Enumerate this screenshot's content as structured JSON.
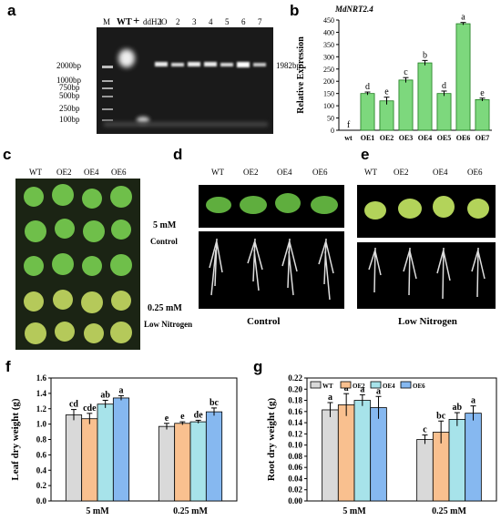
{
  "panels": {
    "a": {
      "letter": "a",
      "lanes": [
        "M",
        "WT",
        "+",
        "ddH2O",
        "1",
        "2",
        "3",
        "4",
        "5",
        "6",
        "7"
      ],
      "ladder": [
        "2000bp",
        "1000bp",
        "750bp",
        "500bp",
        "250bp",
        "100bp"
      ],
      "band_label": "1982bp"
    },
    "b": {
      "letter": "b"
    },
    "c": {
      "letter": "c",
      "genotypes": [
        "WT",
        "OE2",
        "OE4",
        "OE6"
      ],
      "treatments": [
        "5 mM",
        "Control",
        "0.25 mM",
        "Low Nitrogen"
      ]
    },
    "d": {
      "letter": "d",
      "genotypes": [
        "WT",
        "OE2",
        "OE4",
        "OE6"
      ],
      "caption": "Control"
    },
    "e": {
      "letter": "e",
      "genotypes": [
        "WT",
        "OE2",
        "OE4",
        "OE6"
      ],
      "caption": "Low Nitrogen"
    },
    "f": {
      "letter": "f"
    },
    "g": {
      "letter": "g"
    }
  },
  "chart_data": [
    {
      "id": "b",
      "type": "bar",
      "title": "MdNRT2.4",
      "ylabel": "Relative Expression",
      "categories": [
        "wt",
        "OE1",
        "OE2",
        "OE3",
        "OE4",
        "OE5",
        "OE6",
        "OE7"
      ],
      "values": [
        0,
        150,
        120,
        205,
        275,
        150,
        435,
        125
      ],
      "errors": [
        0,
        6,
        15,
        10,
        10,
        10,
        5,
        6
      ],
      "letters": [
        "f",
        "d",
        "e",
        "c",
        "b",
        "d",
        "a",
        "e"
      ],
      "ylim": [
        0,
        450
      ],
      "yticks": [
        0,
        50,
        100,
        150,
        200,
        250,
        300,
        350,
        400,
        450
      ],
      "color": "#7dd87d"
    },
    {
      "id": "f",
      "type": "bar",
      "ylabel": "Leaf dry weight (g)",
      "categories": [
        "5 mM",
        "0.25 mM"
      ],
      "series": [
        {
          "name": "WT",
          "values": [
            1.12,
            0.97
          ],
          "errors": [
            0.07,
            0.04
          ],
          "letters": [
            "cd",
            "e"
          ],
          "color": "#d9d9d9"
        },
        {
          "name": "OE2",
          "values": [
            1.07,
            1.01
          ],
          "errors": [
            0.07,
            0.02
          ],
          "letters": [
            "cde",
            "e"
          ],
          "color": "#f9c08f"
        },
        {
          "name": "OE4",
          "values": [
            1.26,
            1.03
          ],
          "errors": [
            0.05,
            0.02
          ],
          "letters": [
            "ab",
            "de"
          ],
          "color": "#a7e3ea"
        },
        {
          "name": "OE6",
          "values": [
            1.34,
            1.16
          ],
          "errors": [
            0.03,
            0.05
          ],
          "letters": [
            "a",
            "bc"
          ],
          "color": "#86b8f0"
        }
      ],
      "ylim": [
        0,
        1.6
      ],
      "yticks": [
        0.0,
        0.2,
        0.4,
        0.6,
        0.8,
        1.0,
        1.2,
        1.4,
        1.6
      ]
    },
    {
      "id": "g",
      "type": "bar",
      "ylabel": "Root dry weight (g)",
      "categories": [
        "5 mM",
        "0.25 mM"
      ],
      "legend": "top-left",
      "series": [
        {
          "name": "WT",
          "values": [
            0.163,
            0.11
          ],
          "errors": [
            0.013,
            0.008
          ],
          "letters": [
            "a",
            "c"
          ],
          "color": "#d9d9d9"
        },
        {
          "name": "OE2",
          "values": [
            0.172,
            0.123
          ],
          "errors": [
            0.02,
            0.02
          ],
          "letters": [
            "a",
            "bc"
          ],
          "color": "#f9c08f"
        },
        {
          "name": "OE4",
          "values": [
            0.18,
            0.146
          ],
          "errors": [
            0.01,
            0.012
          ],
          "letters": [
            "a",
            "ab"
          ],
          "color": "#a7e3ea"
        },
        {
          "name": "OE6",
          "values": [
            0.167,
            0.157
          ],
          "errors": [
            0.02,
            0.013
          ],
          "letters": [
            "a",
            "a"
          ],
          "color": "#86b8f0"
        }
      ],
      "ylim": [
        0,
        0.22
      ],
      "yticks": [
        0.0,
        0.02,
        0.04,
        0.06,
        0.08,
        0.1,
        0.12,
        0.14,
        0.16,
        0.18,
        0.2,
        0.22
      ]
    }
  ]
}
